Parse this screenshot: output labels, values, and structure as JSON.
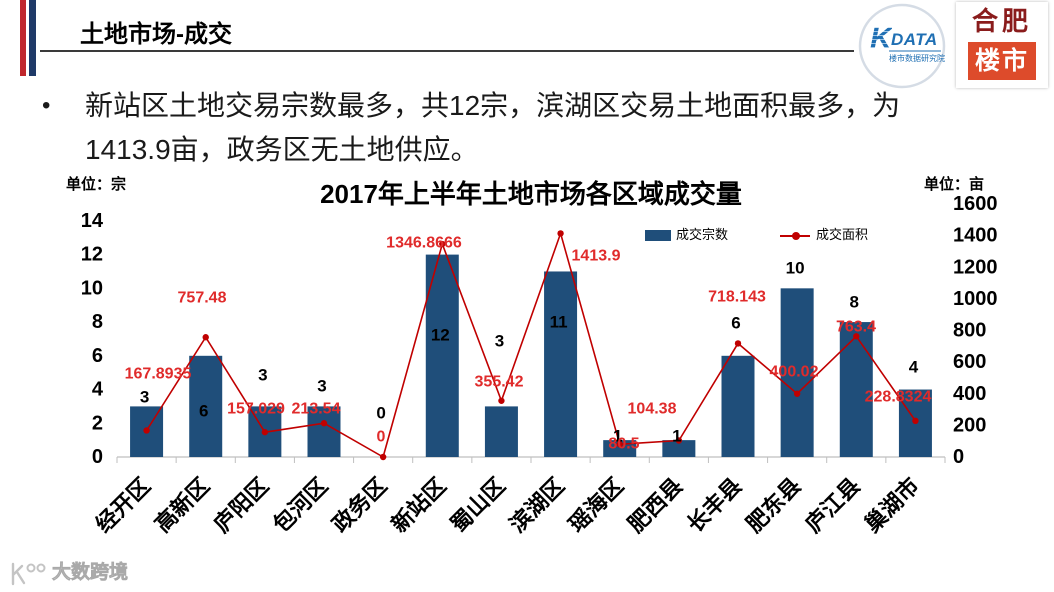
{
  "slide": {
    "title": "土地市场-成交",
    "accent_colors": {
      "red": "#c0272d",
      "navy": "#1f3a68"
    }
  },
  "logos": {
    "kdata": {
      "mark": "K",
      "name": "DATA",
      "subtitle": "楼市数据研究院"
    },
    "hefei": {
      "top": "合肥",
      "bottom": "楼市"
    }
  },
  "bullet": {
    "marker": "•",
    "lines": [
      "新站区土地交易宗数最多，共12宗，滨湖区交易土地面积最多，为",
      "1413.9亩，政务区无土地供应。"
    ]
  },
  "chart_data": {
    "type": "bar",
    "title": "2017年上半年土地市场各区域成交量",
    "categories": [
      "经开区",
      "高新区",
      "庐阳区",
      "包河区",
      "政务区",
      "新站区",
      "蜀山区",
      "滨湖区",
      "瑶海区",
      "肥西县",
      "长丰县",
      "肥东县",
      "庐江县",
      "巢湖市"
    ],
    "series": [
      {
        "name": "成交宗数",
        "type": "bar",
        "axis": "left",
        "color": "#1f4e7a",
        "values": [
          3,
          6,
          3,
          3,
          0,
          12,
          3,
          11,
          1,
          1,
          6,
          10,
          8,
          4
        ]
      },
      {
        "name": "成交面积",
        "type": "line",
        "axis": "right",
        "color": "#c00000",
        "values": [
          167.8935,
          757.48,
          157.029,
          213.54,
          0,
          1346.8666,
          355.42,
          1413.9,
          80.5,
          104.38,
          718.143,
          400.02,
          763.4,
          228.8324
        ]
      }
    ],
    "y_left": {
      "unit_label": "单位：宗",
      "range": [
        0,
        15
      ],
      "ticks": [
        0,
        2,
        4,
        6,
        8,
        10,
        12,
        14
      ]
    },
    "y_right": {
      "unit_label": "单位：亩",
      "range": [
        0,
        1600
      ],
      "ticks": [
        0,
        200,
        400,
        600,
        800,
        1000,
        1200,
        1400,
        1600
      ]
    },
    "label_colors": {
      "bar": "#000000",
      "line": "#e02b2b"
    },
    "legend_position": "top-right",
    "grid": false
  },
  "watermark": {
    "icon": "dashujukuajing-logo-icon",
    "text": "大数跨境"
  }
}
